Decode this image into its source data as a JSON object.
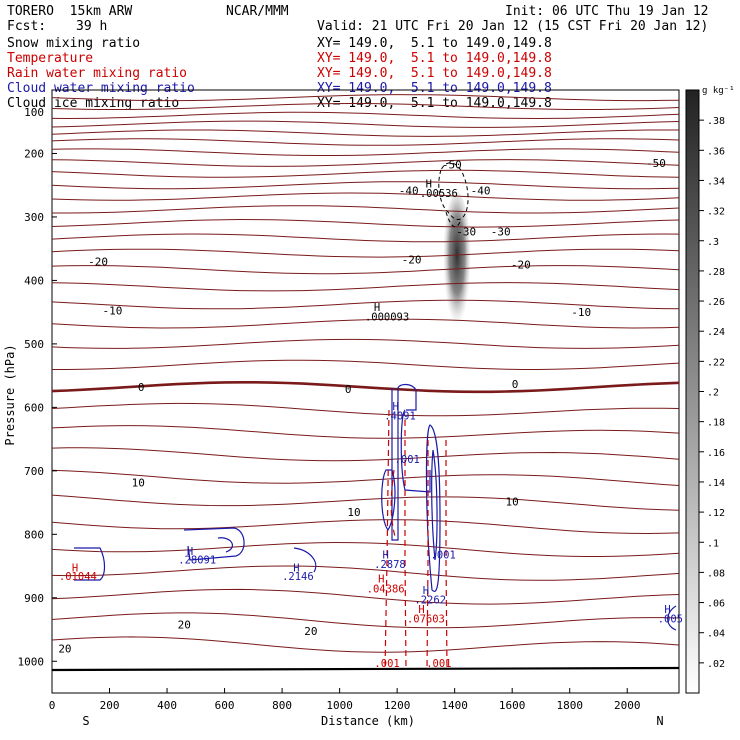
{
  "header": {
    "model": "TORERO  15km ARW",
    "center": "NCAR/MMM",
    "init": "Init: 06 UTC Thu 19 Jan 12",
    "fcst_label": "Fcst:",
    "fcst_value": "39 h",
    "valid": "Valid: 21 UTC Fri 20 Jan 12 (15 CST Fri 20 Jan 12)"
  },
  "fields": [
    {
      "name": "Snow mixing ratio",
      "xy": "XY= 149.0,  5.1 to 149.0,149.8",
      "color": "#000000"
    },
    {
      "name": "Temperature",
      "xy": "XY= 149.0,  5.1 to 149.0,149.8",
      "color": "#cc0000"
    },
    {
      "name": "Rain water mixing ratio",
      "xy": "XY= 149.0,  5.1 to 149.0,149.8",
      "color": "#cc0000"
    },
    {
      "name": "Cloud water mixing ratio",
      "xy": "XY= 149.0,  5.1 to 149.0,149.8",
      "color": "#1a1aaa"
    },
    {
      "name": "Cloud ice mixing ratio",
      "xy": "XY= 149.0,  5.1 to 149.0,149.8",
      "color": "#000000"
    }
  ],
  "chart_data": {
    "type": "cross-section contour",
    "xlabel": "Distance (km)",
    "ylabel": "Pressure (hPa)",
    "xlim": [
      0,
      2180
    ],
    "ylim": [
      1050,
      100
    ],
    "x_ticks": [
      "0",
      "200",
      "400",
      "600",
      "800",
      "1000",
      "1200",
      "1400",
      "1600",
      "1800",
      "2000"
    ],
    "y_ticks": [
      "200",
      "300",
      "400",
      "500",
      "600",
      "700",
      "800",
      "900",
      "1000"
    ],
    "y_ticks_top_overlapped": "100",
    "left_end": "S",
    "right_end": "N",
    "colorbar": {
      "units": "g kg⁻¹",
      "ticks": [
        ".02",
        ".04",
        ".06",
        ".08",
        ".1",
        ".12",
        ".14",
        ".16",
        ".18",
        ".2",
        ".22",
        ".24",
        ".26",
        ".28",
        ".3",
        ".32",
        ".34",
        ".36",
        ".38"
      ]
    },
    "colors": {
      "temperature": "#7a1a1a",
      "rain": "#cc0000",
      "cloud_water": "#1a1aaa",
      "ice": "#000000"
    },
    "temperature_labels": [
      {
        "text": "-50",
        "x": 1390,
        "p": 217
      },
      {
        "text": "-50",
        "x": 2100,
        "p": 215
      },
      {
        "text": "-40",
        "x": 1240,
        "p": 258
      },
      {
        "text": "-40",
        "x": 1490,
        "p": 258
      },
      {
        "text": "-30",
        "x": 1440,
        "p": 323
      },
      {
        "text": "-30",
        "x": 1560,
        "p": 323
      },
      {
        "text": "-20",
        "x": 160,
        "p": 370
      },
      {
        "text": "-20",
        "x": 1250,
        "p": 367
      },
      {
        "text": "-20",
        "x": 1630,
        "p": 375
      },
      {
        "text": "-10",
        "x": 210,
        "p": 447
      },
      {
        "text": "-10",
        "x": 1840,
        "p": 450
      },
      {
        "text": "0",
        "x": 310,
        "p": 568
      },
      {
        "text": "0",
        "x": 1030,
        "p": 571
      },
      {
        "text": "0",
        "x": 1610,
        "p": 563
      },
      {
        "text": "10",
        "x": 300,
        "p": 718
      },
      {
        "text": "10",
        "x": 1050,
        "p": 765
      },
      {
        "text": "10",
        "x": 1600,
        "p": 748
      },
      {
        "text": "20",
        "x": 45,
        "p": 980
      },
      {
        "text": "20",
        "x": 460,
        "p": 942
      },
      {
        "text": "20",
        "x": 900,
        "p": 952
      }
    ],
    "extrema_labels": [
      {
        "text": "H",
        "x": 1310,
        "p": 247,
        "color": "ice"
      },
      {
        "text": ".00536",
        "x": 1345,
        "p": 262,
        "color": "ice"
      },
      {
        "text": "H",
        "x": 1130,
        "p": 442,
        "color": "ice"
      },
      {
        "text": ".000093",
        "x": 1165,
        "p": 457,
        "color": "ice"
      },
      {
        "text": "H",
        "x": 1195,
        "p": 598,
        "color": "cloud_water"
      },
      {
        "text": ".4091",
        "x": 1210,
        "p": 613,
        "color": "cloud_water"
      },
      {
        "text": ".001",
        "x": 1235,
        "p": 681,
        "color": "cloud_water"
      },
      {
        "text": "H",
        "x": 480,
        "p": 826,
        "color": "cloud_water"
      },
      {
        "text": ".28091",
        "x": 505,
        "p": 840,
        "color": "cloud_water"
      },
      {
        "text": "H",
        "x": 80,
        "p": 852,
        "color": "rain"
      },
      {
        "text": ".01044",
        "x": 90,
        "p": 866,
        "color": "rain"
      },
      {
        "text": "H",
        "x": 850,
        "p": 852,
        "color": "cloud_water"
      },
      {
        "text": ".2146",
        "x": 855,
        "p": 866,
        "color": "cloud_water"
      },
      {
        "text": "H",
        "x": 1160,
        "p": 832,
        "color": "cloud_water"
      },
      {
        "text": ".2878",
        "x": 1175,
        "p": 847,
        "color": "cloud_water"
      },
      {
        "text": ".001",
        "x": 1360,
        "p": 832,
        "color": "cloud_water"
      },
      {
        "text": "H",
        "x": 1145,
        "p": 870,
        "color": "rain"
      },
      {
        "text": ".04386",
        "x": 1160,
        "p": 885,
        "color": "rain"
      },
      {
        "text": "H",
        "x": 1300,
        "p": 888,
        "color": "cloud_water"
      },
      {
        "text": ".2262",
        "x": 1315,
        "p": 903,
        "color": "cloud_water"
      },
      {
        "text": "H",
        "x": 1285,
        "p": 918,
        "color": "rain"
      },
      {
        "text": ".07603",
        "x": 1300,
        "p": 933,
        "color": "rain"
      },
      {
        "text": "H",
        "x": 2140,
        "p": 918,
        "color": "cloud_water"
      },
      {
        "text": ".005",
        "x": 2150,
        "p": 933,
        "color": "cloud_water"
      },
      {
        "text": ".001",
        "x": 1165,
        "p": 1003,
        "color": "rain"
      },
      {
        "text": ".001",
        "x": 1345,
        "p": 1003,
        "color": "rain"
      }
    ]
  }
}
